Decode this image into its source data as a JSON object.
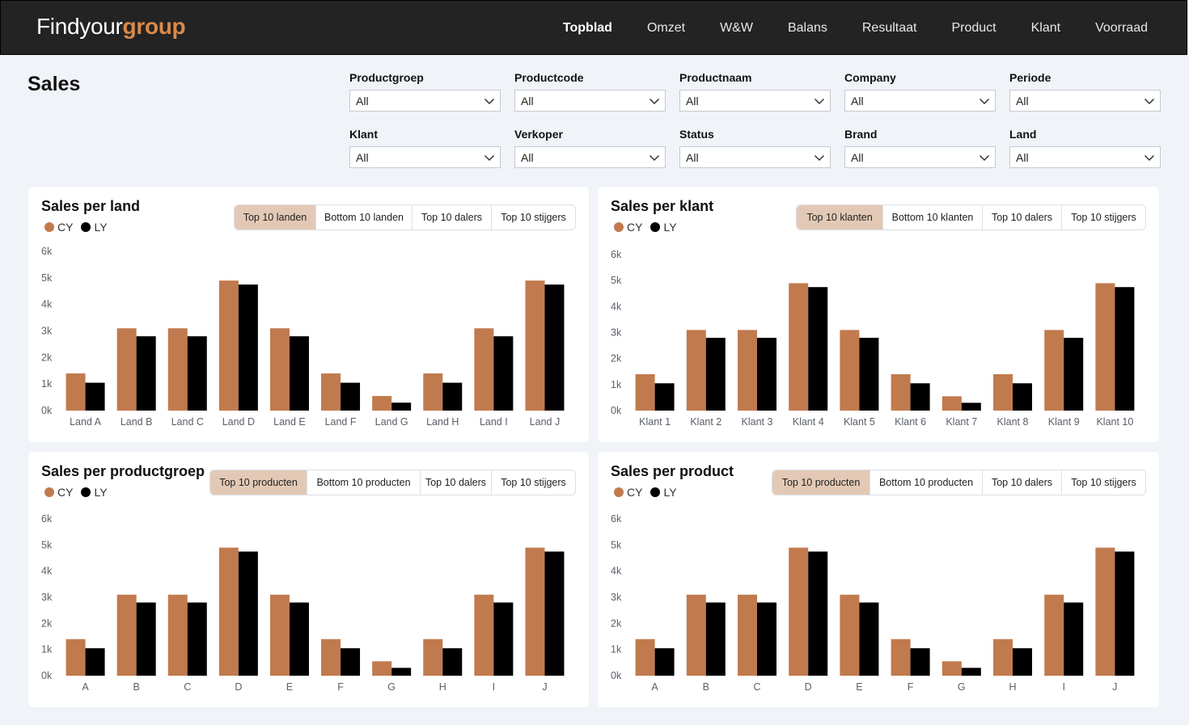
{
  "header": {
    "logo_regular": "Findyour",
    "logo_bold": "group",
    "nav": [
      "Topblad",
      "Omzet",
      "W&W",
      "Balans",
      "Resultaat",
      "Product",
      "Klant",
      "Voorraad"
    ],
    "active_nav": "Topblad"
  },
  "page": {
    "title": "Sales"
  },
  "filters": [
    {
      "label": "Productgroep",
      "value": "All"
    },
    {
      "label": "Productcode",
      "value": "All"
    },
    {
      "label": "Productnaam",
      "value": "All"
    },
    {
      "label": "Company",
      "value": "All"
    },
    {
      "label": "Periode",
      "value": "All"
    },
    {
      "label": "Klant",
      "value": "All"
    },
    {
      "label": "Verkoper",
      "value": "All"
    },
    {
      "label": "Status",
      "value": "All"
    },
    {
      "label": "Brand",
      "value": "All"
    },
    {
      "label": "Land",
      "value": "All"
    }
  ],
  "colors": {
    "cy": "#c17a4e",
    "ly": "#000000",
    "active_tab": "#e3c9b5"
  },
  "legend": {
    "cy": "CY",
    "ly": "LY"
  },
  "cards": [
    {
      "title": "Sales per land",
      "tabs": [
        "Top 10 landen",
        "Bottom 10 landen",
        "Top 10 dalers",
        "Top 10 stijgers"
      ],
      "active_tab": 0
    },
    {
      "title": "Sales per klant",
      "tabs": [
        "Top 10 klanten",
        "Bottom 10 klanten",
        "Top 10 dalers",
        "Top 10 stijgers"
      ],
      "active_tab": 0
    },
    {
      "title": "Sales per productgroep",
      "tabs": [
        "Top 10 producten",
        "Bottom 10 producten",
        "Top 10 dalers",
        "Top 10 stijgers"
      ],
      "active_tab": 0
    },
    {
      "title": "Sales per product",
      "tabs": [
        "Top 10 producten",
        "Bottom 10 producten",
        "Top 10 dalers",
        "Top 10 stijgers"
      ],
      "active_tab": 0
    }
  ],
  "chart_data": [
    {
      "type": "bar",
      "categories": [
        "Land A",
        "Land B",
        "Land C",
        "Land D",
        "Land E",
        "Land F",
        "Land G",
        "Land H",
        "Land I",
        "Land J"
      ],
      "series": [
        {
          "name": "CY",
          "values": [
            1400,
            3100,
            3100,
            4900,
            3100,
            1400,
            550,
            1400,
            3100,
            4900
          ]
        },
        {
          "name": "LY",
          "values": [
            1050,
            2800,
            2800,
            4750,
            2800,
            1050,
            300,
            1050,
            2800,
            4750
          ]
        }
      ],
      "yticks": [
        "0k",
        "1k",
        "2k",
        "3k",
        "4k",
        "5k",
        "6k"
      ],
      "ylim": [
        0,
        6000
      ]
    },
    {
      "type": "bar",
      "categories": [
        "Klant 1",
        "Klant 2",
        "Klant 3",
        "Klant 4",
        "Klant 5",
        "Klant 6",
        "Klant 7",
        "Klant 8",
        "Klant 9",
        "Klant 10"
      ],
      "series": [
        {
          "name": "CY",
          "values": [
            1400,
            3100,
            3100,
            4900,
            3100,
            1400,
            550,
            1400,
            3100,
            4900
          ]
        },
        {
          "name": "LY",
          "values": [
            1050,
            2800,
            2800,
            4750,
            2800,
            1050,
            300,
            1050,
            2800,
            4750
          ]
        }
      ],
      "yticks": [
        "0k",
        "1k",
        "2k",
        "3k",
        "4k",
        "5k",
        "6k"
      ],
      "ylim": [
        0,
        6000
      ]
    },
    {
      "type": "bar",
      "categories": [
        "A",
        "B",
        "C",
        "D",
        "E",
        "F",
        "G",
        "H",
        "I",
        "J"
      ],
      "series": [
        {
          "name": "CY",
          "values": [
            1400,
            3100,
            3100,
            4900,
            3100,
            1400,
            550,
            1400,
            3100,
            4900
          ]
        },
        {
          "name": "LY",
          "values": [
            1050,
            2800,
            2800,
            4750,
            2800,
            1050,
            300,
            1050,
            2800,
            4750
          ]
        }
      ],
      "yticks": [
        "0k",
        "1k",
        "2k",
        "3k",
        "4k",
        "5k",
        "6k"
      ],
      "ylim": [
        0,
        6000
      ]
    },
    {
      "type": "bar",
      "categories": [
        "A",
        "B",
        "C",
        "D",
        "E",
        "F",
        "G",
        "H",
        "I",
        "J"
      ],
      "series": [
        {
          "name": "CY",
          "values": [
            1400,
            3100,
            3100,
            4900,
            3100,
            1400,
            550,
            1400,
            3100,
            4900
          ]
        },
        {
          "name": "LY",
          "values": [
            1050,
            2800,
            2800,
            4750,
            2800,
            1050,
            300,
            1050,
            2800,
            4750
          ]
        }
      ],
      "yticks": [
        "0k",
        "1k",
        "2k",
        "3k",
        "4k",
        "5k",
        "6k"
      ],
      "ylim": [
        0,
        6000
      ]
    }
  ]
}
